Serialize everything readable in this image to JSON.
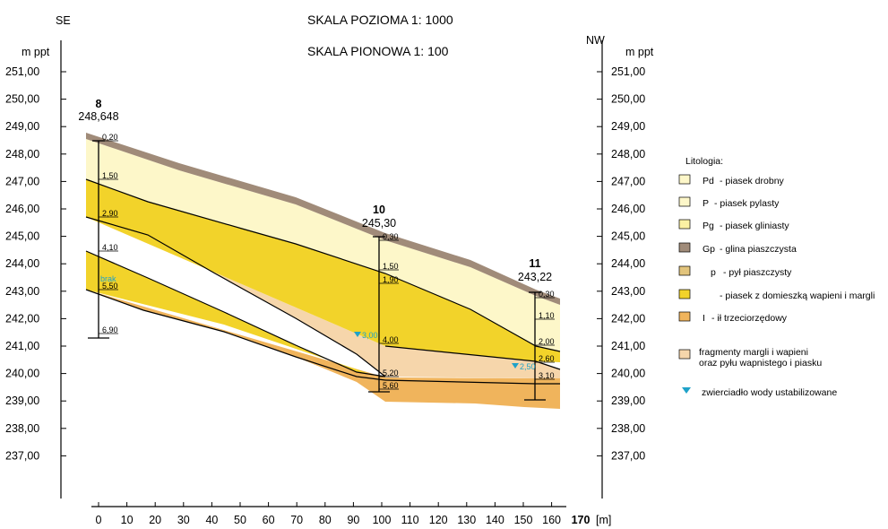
{
  "header": {
    "left_direction": "SE",
    "right_direction": "NW",
    "scale_horizontal": "SKALA POZIOMA  1: 1000",
    "scale_vertical": "SKALA PIONOWA  1: 100",
    "left_unit": "m ppt",
    "right_unit": "m ppt"
  },
  "elevation_axis": {
    "labels": [
      "251,00",
      "250,00",
      "249,00",
      "248,00",
      "247,00",
      "246,00",
      "245,00",
      "244,00",
      "243,00",
      "242,00",
      "241,00",
      "240,00",
      "239,00",
      "238,00",
      "237,00"
    ],
    "min": 236,
    "max": 252
  },
  "distance_axis": {
    "labels": [
      "0",
      "10",
      "20",
      "30",
      "40",
      "50",
      "60",
      "70",
      "80",
      "90",
      "100",
      "110",
      "120",
      "130",
      "140",
      "150",
      "160"
    ],
    "end_label": "170",
    "unit": "[m]"
  },
  "boreholes": [
    {
      "number": "8",
      "elevation": "248,648",
      "distance": 2,
      "depths": [
        "0,20",
        "1,50",
        "2,90",
        "4,10",
        "5,50",
        "6,90"
      ],
      "water_note": "brak"
    },
    {
      "number": "10",
      "elevation": "245,30",
      "distance": 97,
      "depths": [
        "0,30",
        "1,50",
        "1,90",
        "4,00",
        "5,20",
        "5,60"
      ],
      "water_level": "3,00"
    },
    {
      "number": "11",
      "elevation": "243,22",
      "distance": 155,
      "depths": [
        "0,30",
        "1,10",
        "2,00",
        "2,60",
        "3,10"
      ],
      "water_level": "2,50"
    }
  ],
  "legend": {
    "title": "Litologia:",
    "items": [
      {
        "code": "Pd",
        "label": "- piasek drobny",
        "color": "#fdf7c9"
      },
      {
        "code": "P",
        "label": "- piasek pylasty",
        "color": "#fdf7c9"
      },
      {
        "code": "Pg",
        "label": "- piasek gliniasty",
        "color": "#fbf1a3"
      },
      {
        "code": "Gp",
        "label": "- glina piaszczysta",
        "color": "#a08b79"
      },
      {
        "code": "p",
        "label": "- pył piaszczysty",
        "color": "#e2c47c"
      },
      {
        "code": "",
        "label": "- piasek z domieszką wapieni i margli",
        "color": "#f2d32a"
      },
      {
        "code": "I",
        "label": "- ił trzeciorzędowy",
        "color": "#f0b45c"
      }
    ],
    "fragments_line1": "fragmenty  margli i wapieni",
    "fragments_line2": "oraz pyłu wapnistego i piasku",
    "fragments_color": "#f6d6ab",
    "water_symbol_label": "zwierciadło  wody ustabilizowane",
    "water_color": "#1fa2c9"
  },
  "colors": {
    "topsoil": "#a08b79",
    "sand_light": "#fdf7c9",
    "sand_yellow": "#f2d32a",
    "peach": "#f6d6ab",
    "clay_orange": "#f0b45c"
  }
}
